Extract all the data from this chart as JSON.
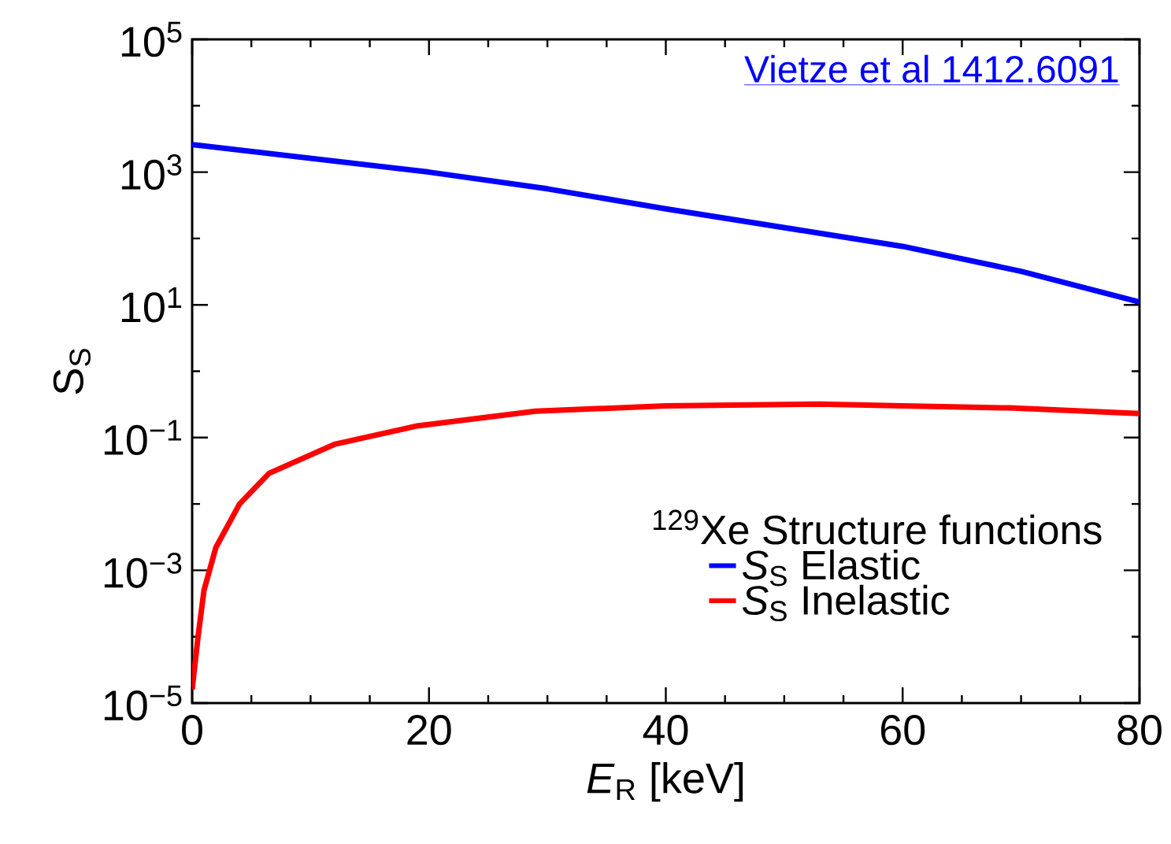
{
  "chart_data": {
    "type": "line",
    "xlabel": "*E*$_{R}$ [keV]",
    "ylabel": "S$_{S}$",
    "legend_title": "$^{129}$Xe Structure functions",
    "log": "y",
    "legend": "bottom right",
    "line_style": "solid",
    "marker": "none",
    "xlim": [
      0,
      80
    ],
    "xticks": [
      0,
      20,
      40,
      60,
      80
    ],
    "ylim": [
      1e-05,
      100000.0
    ],
    "yticks": [
      {
        "value": 1e-05,
        "label": "10$^{−5}$"
      },
      {
        "value": 0.001,
        "label": "10$^{−3}$"
      },
      {
        "value": 0.1,
        "label": "10$^{−1}$"
      },
      {
        "value": 10,
        "label": "10$^{1}$"
      },
      {
        "value": 1000,
        "label": "10$^{3}$"
      },
      {
        "value": 100000,
        "label": "10$^{5}$"
      }
    ],
    "annotations": [
      "Vietze et al 1412.6091"
    ],
    "series": [
      {
        "name": "*S*$_{S}$ Elastic",
        "color": "#0000ff",
        "x": [
          0,
          20,
          30,
          40,
          53,
          60,
          70,
          80
        ],
        "values": [
          2600,
          1000,
          560,
          280,
          120,
          76,
          32,
          11
        ]
      },
      {
        "name": "*S*$_{S}$ Inelastic",
        "color": "#ff0000",
        "x": [
          0,
          0.5,
          1,
          2,
          4,
          6.5,
          12,
          19,
          29,
          40,
          53,
          60,
          69,
          80
        ],
        "values": [
          1.6e-05,
          0.0001,
          0.0005,
          0.0022,
          0.01,
          0.029,
          0.079,
          0.15,
          0.25,
          0.3,
          0.32,
          0.3,
          0.28,
          0.23
        ]
      }
    ]
  }
}
